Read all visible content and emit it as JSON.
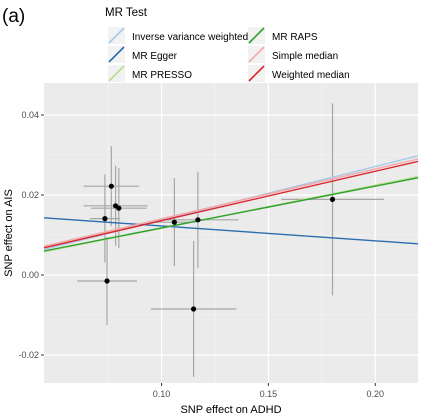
{
  "panel_label": "(a)",
  "chart_data": {
    "type": "scatter",
    "xlabel": "SNP effect on ADHD",
    "ylabel": "SNP effect on AIS",
    "xlim": [
      0.045,
      0.22
    ],
    "ylim": [
      -0.027,
      0.048
    ],
    "x_ticks": [
      {
        "value": 0.1,
        "label": "0.10"
      },
      {
        "value": 0.15,
        "label": "0.15"
      },
      {
        "value": 0.2,
        "label": "0.20"
      }
    ],
    "y_ticks": [
      {
        "value": -0.02,
        "label": "-0.02"
      },
      {
        "value": 0.0,
        "label": "0.00"
      },
      {
        "value": 0.02,
        "label": "0.02"
      },
      {
        "value": 0.04,
        "label": "0.04"
      }
    ],
    "grid": true,
    "points": [
      {
        "x": 0.0735,
        "y": 0.0141,
        "x_err": 0.007,
        "y_err": 0.011
      },
      {
        "x": 0.0765,
        "y": 0.0222,
        "x_err": 0.013,
        "y_err": 0.01
      },
      {
        "x": 0.0785,
        "y": 0.0173,
        "x_err": 0.015,
        "y_err": 0.01
      },
      {
        "x": 0.08,
        "y": 0.0167,
        "x_err": 0.013,
        "y_err": 0.01
      },
      {
        "x": 0.0745,
        "y": -0.0015,
        "x_err": 0.014,
        "y_err": 0.011
      },
      {
        "x": 0.106,
        "y": 0.0132,
        "x_err": 0.01,
        "y_err": 0.011
      },
      {
        "x": 0.117,
        "y": 0.0138,
        "x_err": 0.019,
        "y_err": 0.012
      },
      {
        "x": 0.115,
        "y": -0.0085,
        "x_err": 0.02,
        "y_err": 0.017
      },
      {
        "x": 0.18,
        "y": 0.0189,
        "x_err": 0.024,
        "y_err": 0.024
      }
    ],
    "legend": {
      "title": "MR Test",
      "placement": "top",
      "entries": [
        {
          "name": "Inverse variance weighted",
          "color": "#a8c8e8"
        },
        {
          "name": "MR Egger",
          "color": "#2b6cb0"
        },
        {
          "name": "MR PRESSO",
          "color": "#b4df8c"
        },
        {
          "name": "MR RAPS",
          "color": "#2ea02c"
        },
        {
          "name": "Simple median",
          "color": "#f4a8aa"
        },
        {
          "name": "Weighted median",
          "color": "#d9272e"
        }
      ]
    },
    "lines": [
      {
        "name": "Inverse variance weighted",
        "color": "#a8c8e8",
        "y_at_xmin": 0.0064,
        "y_at_xmax": 0.0298
      },
      {
        "name": "MR Egger",
        "color": "#2b6cb0",
        "y_at_xmin": 0.0143,
        "y_at_xmax": 0.0078
      },
      {
        "name": "MR PRESSO",
        "color": "#b4df8c",
        "y_at_xmin": 0.0058,
        "y_at_xmax": 0.0246
      },
      {
        "name": "MR RAPS",
        "color": "#2ea02c",
        "y_at_xmin": 0.006,
        "y_at_xmax": 0.0243
      },
      {
        "name": "Simple median",
        "color": "#f4a8aa",
        "y_at_xmin": 0.0072,
        "y_at_xmax": 0.029
      },
      {
        "name": "Weighted median",
        "color": "#d9272e",
        "y_at_xmin": 0.0068,
        "y_at_xmax": 0.0284
      }
    ]
  }
}
